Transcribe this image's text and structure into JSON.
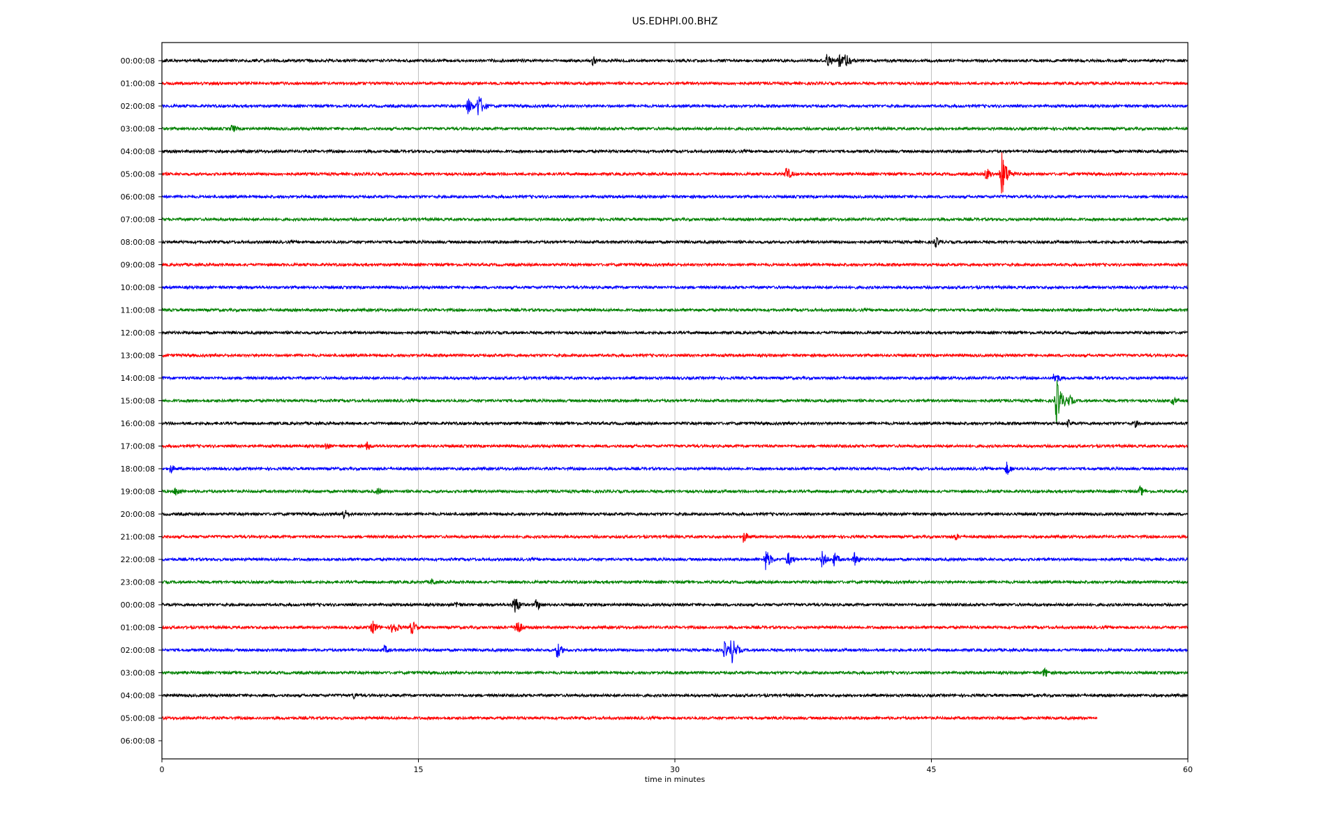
{
  "chart_data": {
    "type": "line",
    "title": "US.EDHPI.00.BHZ",
    "xlabel": "time in minutes",
    "ylabel": "",
    "xlim": [
      0,
      60
    ],
    "xticks": [
      0,
      15,
      30,
      45,
      60
    ],
    "grid": "vertical",
    "row_labels": [
      "00:00:08",
      "01:00:08",
      "02:00:08",
      "03:00:08",
      "04:00:08",
      "05:00:08",
      "06:00:08",
      "07:00:08",
      "08:00:08",
      "09:00:08",
      "10:00:08",
      "11:00:08",
      "12:00:08",
      "13:00:08",
      "14:00:08",
      "15:00:08",
      "16:00:08",
      "17:00:08",
      "18:00:08",
      "19:00:08",
      "20:00:08",
      "21:00:08",
      "22:00:08",
      "23:00:08",
      "00:00:08",
      "01:00:08",
      "02:00:08",
      "03:00:08",
      "04:00:08",
      "05:00:08",
      "06:00:08"
    ],
    "trace_colors": [
      "#000000",
      "#ff0000",
      "#0000ff",
      "#008000"
    ],
    "last_trace_end_minute": 54.7,
    "events": [
      {
        "row": 0,
        "minute": 25.2,
        "amp": 0.35
      },
      {
        "row": 0,
        "minute": 38.9,
        "amp": 0.55
      },
      {
        "row": 0,
        "minute": 39.6,
        "amp": 0.5
      },
      {
        "row": 0,
        "minute": 40.0,
        "amp": 0.7
      },
      {
        "row": 2,
        "minute": 17.9,
        "amp": 0.6
      },
      {
        "row": 2,
        "minute": 18.5,
        "amp": 0.9
      },
      {
        "row": 3,
        "minute": 4.1,
        "amp": 0.35
      },
      {
        "row": 5,
        "minute": 36.5,
        "amp": 0.55
      },
      {
        "row": 5,
        "minute": 48.2,
        "amp": 0.5
      },
      {
        "row": 5,
        "minute": 49.1,
        "amp": 1.6
      },
      {
        "row": 8,
        "minute": 45.2,
        "amp": 0.45
      },
      {
        "row": 14,
        "minute": 52.2,
        "amp": 0.5
      },
      {
        "row": 15,
        "minute": 52.3,
        "amp": 1.6
      },
      {
        "row": 15,
        "minute": 53.0,
        "amp": 0.5
      },
      {
        "row": 15,
        "minute": 59.1,
        "amp": 0.35
      },
      {
        "row": 16,
        "minute": 53.0,
        "amp": 0.3
      },
      {
        "row": 16,
        "minute": 56.9,
        "amp": 0.3
      },
      {
        "row": 17,
        "minute": 9.6,
        "amp": 0.3
      },
      {
        "row": 17,
        "minute": 12.0,
        "amp": 0.35
      },
      {
        "row": 18,
        "minute": 0.5,
        "amp": 0.35
      },
      {
        "row": 18,
        "minute": 49.4,
        "amp": 0.5
      },
      {
        "row": 19,
        "minute": 0.8,
        "amp": 0.4
      },
      {
        "row": 19,
        "minute": 12.6,
        "amp": 0.3
      },
      {
        "row": 19,
        "minute": 57.2,
        "amp": 0.4
      },
      {
        "row": 20,
        "minute": 10.6,
        "amp": 0.45
      },
      {
        "row": 21,
        "minute": 34.0,
        "amp": 0.45
      },
      {
        "row": 21,
        "minute": 46.4,
        "amp": 0.3
      },
      {
        "row": 22,
        "minute": 35.3,
        "amp": 0.8
      },
      {
        "row": 22,
        "minute": 36.6,
        "amp": 0.55
      },
      {
        "row": 22,
        "minute": 38.6,
        "amp": 0.6
      },
      {
        "row": 22,
        "minute": 39.3,
        "amp": 0.5
      },
      {
        "row": 22,
        "minute": 40.5,
        "amp": 0.5
      },
      {
        "row": 23,
        "minute": 15.8,
        "amp": 0.3
      },
      {
        "row": 24,
        "minute": 17.2,
        "amp": 0.3
      },
      {
        "row": 24,
        "minute": 20.6,
        "amp": 0.75
      },
      {
        "row": 24,
        "minute": 21.9,
        "amp": 0.45
      },
      {
        "row": 25,
        "minute": 12.3,
        "amp": 0.55
      },
      {
        "row": 25,
        "minute": 13.5,
        "amp": 0.6
      },
      {
        "row": 25,
        "minute": 14.6,
        "amp": 0.55
      },
      {
        "row": 25,
        "minute": 20.7,
        "amp": 0.7
      },
      {
        "row": 26,
        "minute": 13.0,
        "amp": 0.35
      },
      {
        "row": 26,
        "minute": 23.1,
        "amp": 0.6
      },
      {
        "row": 26,
        "minute": 32.9,
        "amp": 0.6
      },
      {
        "row": 26,
        "minute": 33.3,
        "amp": 1.0
      },
      {
        "row": 27,
        "minute": 51.6,
        "amp": 0.4
      },
      {
        "row": 28,
        "minute": 11.2,
        "amp": 0.3
      }
    ]
  }
}
